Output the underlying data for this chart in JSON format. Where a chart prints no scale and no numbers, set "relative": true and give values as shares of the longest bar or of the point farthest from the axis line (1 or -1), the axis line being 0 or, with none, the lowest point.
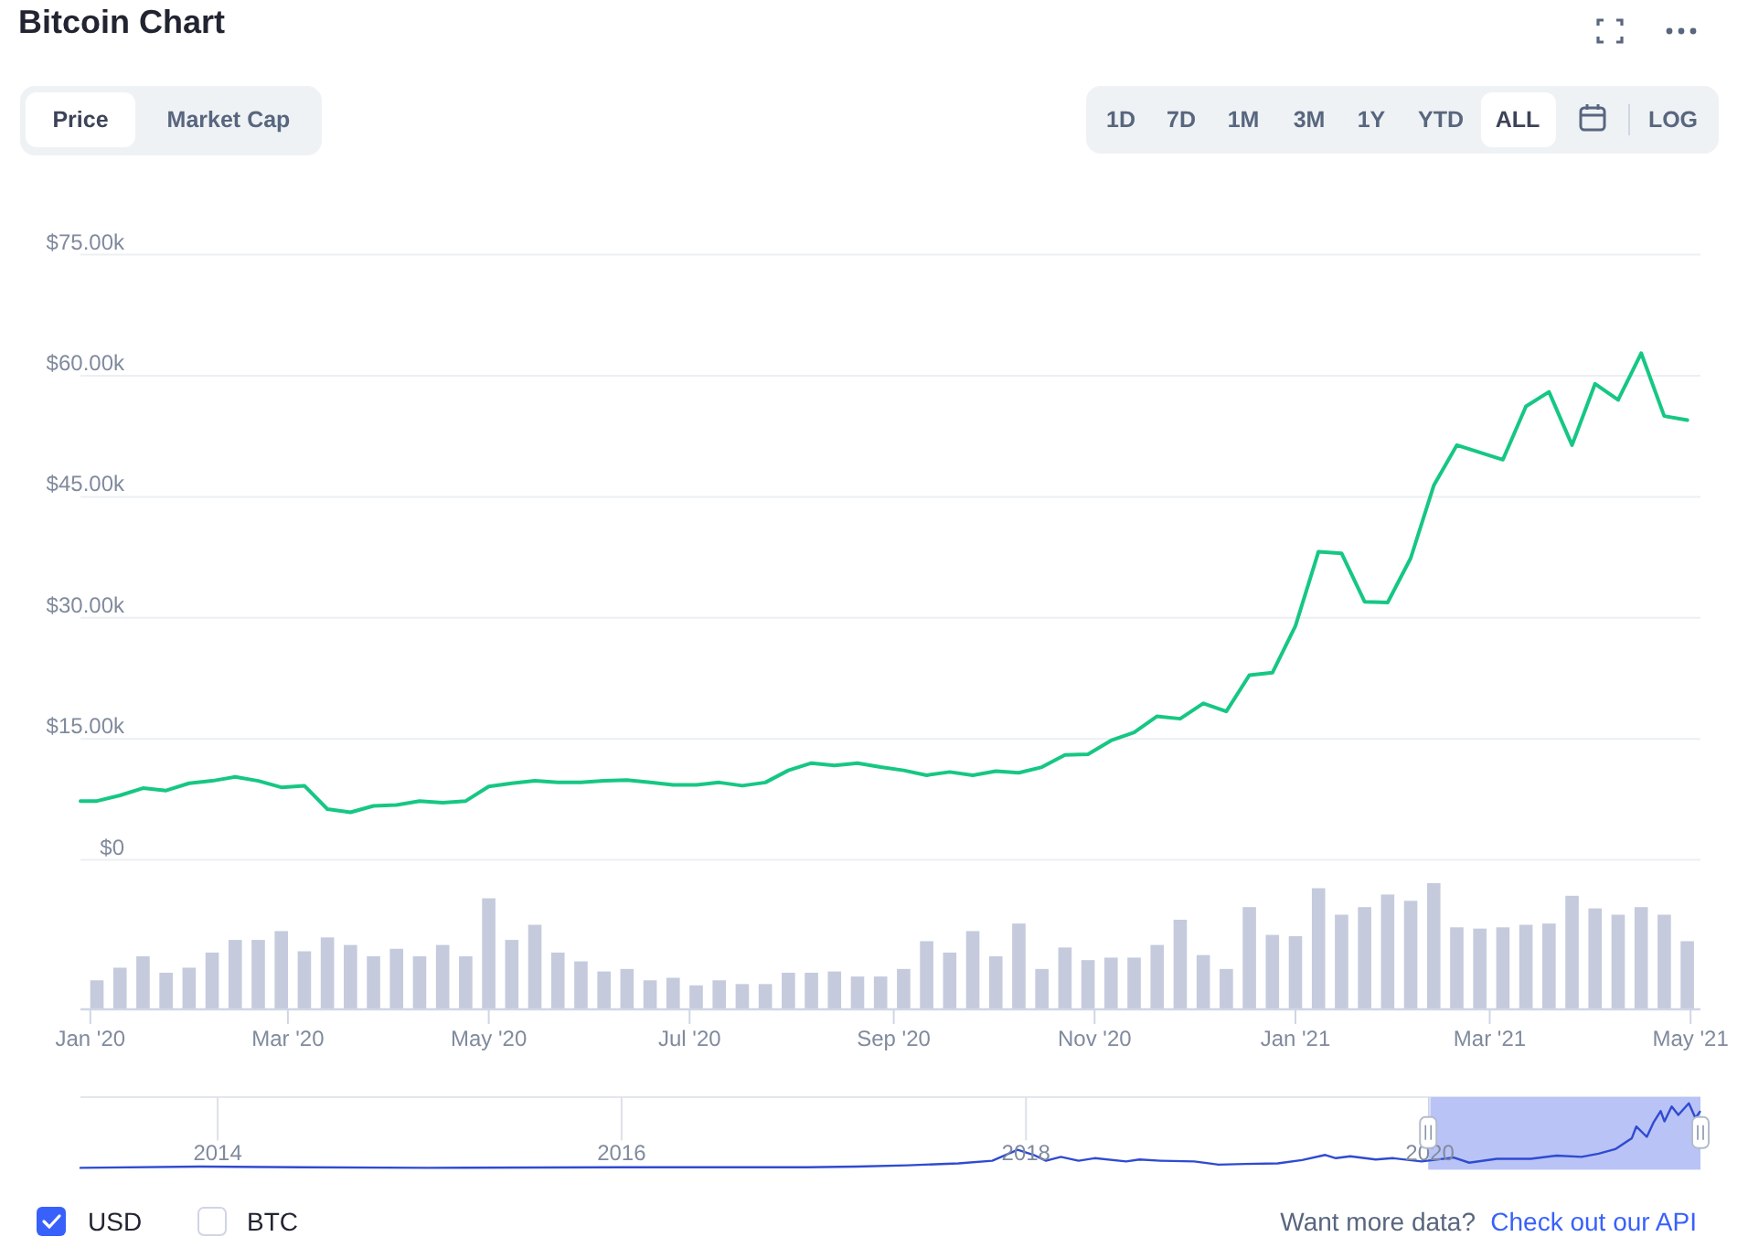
{
  "chart_data": [
    {
      "type": "other",
      "title": "Bitcoin Chart",
      "annotations": [
        "Price",
        "Market Cap",
        "1D",
        "7D",
        "1M",
        "3M",
        "1Y",
        "YTD",
        "ALL",
        "LOG"
      ]
    },
    {
      "type": "line",
      "x": [
        "2019-12-29",
        "2020-01-03",
        "2020-01-10",
        "2020-01-17",
        "2020-01-24",
        "2020-01-31",
        "2020-02-07",
        "2020-02-14",
        "2020-02-21",
        "2020-02-28",
        "2020-03-06",
        "2020-03-13",
        "2020-03-20",
        "2020-03-27",
        "2020-04-03",
        "2020-04-10",
        "2020-04-17",
        "2020-04-24",
        "2020-05-01",
        "2020-05-08",
        "2020-05-15",
        "2020-05-22",
        "2020-05-29",
        "2020-06-05",
        "2020-06-12",
        "2020-06-19",
        "2020-06-26",
        "2020-07-03",
        "2020-07-10",
        "2020-07-17",
        "2020-07-24",
        "2020-07-31",
        "2020-08-07",
        "2020-08-14",
        "2020-08-21",
        "2020-08-28",
        "2020-09-04",
        "2020-09-11",
        "2020-09-18",
        "2020-09-25",
        "2020-10-02",
        "2020-10-09",
        "2020-10-16",
        "2020-10-23",
        "2020-10-30",
        "2020-11-06",
        "2020-11-13",
        "2020-11-20",
        "2020-11-27",
        "2020-12-04",
        "2020-12-11",
        "2020-12-18",
        "2020-12-25",
        "2021-01-01",
        "2021-01-08",
        "2021-01-15",
        "2021-01-22",
        "2021-01-29",
        "2021-02-05",
        "2021-02-12",
        "2021-02-19",
        "2021-02-26",
        "2021-03-05",
        "2021-03-12",
        "2021-03-19",
        "2021-03-26",
        "2021-04-02",
        "2021-04-09",
        "2021-04-16",
        "2021-04-23",
        "2021-04-30"
      ],
      "values": [
        7300,
        7300,
        8000,
        8900,
        8600,
        9500,
        9800,
        10300,
        9800,
        9000,
        9200,
        6300,
        5900,
        6700,
        6800,
        7300,
        7100,
        7300,
        9100,
        9500,
        9800,
        9600,
        9600,
        9800,
        9900,
        9600,
        9300,
        9300,
        9600,
        9200,
        9600,
        11100,
        12000,
        11700,
        12000,
        11500,
        11100,
        10500,
        10900,
        10500,
        11000,
        10800,
        11500,
        13000,
        13100,
        14800,
        15800,
        17800,
        17500,
        19400,
        18400,
        22900,
        23200,
        29000,
        38200,
        38000,
        32000,
        31900,
        37400,
        46400,
        51400,
        50500,
        49600,
        56200,
        58000,
        51400,
        59000,
        57000,
        62800,
        55000,
        54500
      ],
      "color": "#16c784",
      "xlim": [
        "2019-12-29",
        "2021-05-04"
      ],
      "ylim": [
        0,
        75000
      ],
      "yticks": [
        {
          "value": 0,
          "label": "$0"
        },
        {
          "value": 15000,
          "label": "$15.00k"
        },
        {
          "value": 30000,
          "label": "$30.00k"
        },
        {
          "value": 45000,
          "label": "$45.00k"
        },
        {
          "value": 60000,
          "label": "$60.00k"
        },
        {
          "value": 75000,
          "label": "$75.00k"
        }
      ],
      "grid": "y",
      "tick_labels": "y"
    },
    {
      "type": "bar",
      "relative": true,
      "x": [
        "2020-01-03",
        "2020-01-10",
        "2020-01-17",
        "2020-01-24",
        "2020-01-31",
        "2020-02-07",
        "2020-02-14",
        "2020-02-21",
        "2020-02-28",
        "2020-03-06",
        "2020-03-13",
        "2020-03-20",
        "2020-03-27",
        "2020-04-03",
        "2020-04-10",
        "2020-04-17",
        "2020-04-24",
        "2020-05-01",
        "2020-05-08",
        "2020-05-15",
        "2020-05-22",
        "2020-05-29",
        "2020-06-05",
        "2020-06-12",
        "2020-06-19",
        "2020-06-26",
        "2020-07-03",
        "2020-07-10",
        "2020-07-17",
        "2020-07-24",
        "2020-07-31",
        "2020-08-07",
        "2020-08-14",
        "2020-08-21",
        "2020-08-28",
        "2020-09-04",
        "2020-09-11",
        "2020-09-18",
        "2020-09-25",
        "2020-10-02",
        "2020-10-09",
        "2020-10-16",
        "2020-10-23",
        "2020-10-30",
        "2020-11-06",
        "2020-11-13",
        "2020-11-20",
        "2020-11-27",
        "2020-12-04",
        "2020-12-11",
        "2020-12-18",
        "2020-12-25",
        "2021-01-01",
        "2021-01-08",
        "2021-01-15",
        "2021-01-22",
        "2021-01-29",
        "2021-02-05",
        "2021-02-12",
        "2021-02-19",
        "2021-02-26",
        "2021-03-05",
        "2021-03-12",
        "2021-03-19",
        "2021-03-26",
        "2021-04-02",
        "2021-04-09",
        "2021-04-16",
        "2021-04-23",
        "2021-04-30"
      ],
      "values": [
        0.23,
        0.33,
        0.42,
        0.29,
        0.33,
        0.45,
        0.55,
        0.55,
        0.62,
        0.46,
        0.57,
        0.51,
        0.42,
        0.48,
        0.42,
        0.51,
        0.42,
        0.88,
        0.55,
        0.67,
        0.45,
        0.38,
        0.3,
        0.32,
        0.23,
        0.25,
        0.19,
        0.23,
        0.2,
        0.2,
        0.29,
        0.29,
        0.3,
        0.26,
        0.26,
        0.32,
        0.54,
        0.45,
        0.62,
        0.42,
        0.68,
        0.32,
        0.49,
        0.39,
        0.41,
        0.41,
        0.51,
        0.71,
        0.43,
        0.32,
        0.81,
        0.59,
        0.58,
        0.96,
        0.75,
        0.81,
        0.91,
        0.86,
        1,
        0.65,
        0.64,
        0.65,
        0.67,
        0.68,
        0.9,
        0.8,
        0.75,
        0.81,
        0.75,
        0.54
      ],
      "color": "#c5cbdd",
      "xlim": [
        "2019-12-29",
        "2021-05-04"
      ],
      "xticks": [
        {
          "value": "2020-01-01",
          "label": "Jan '20"
        },
        {
          "value": "2020-03-01",
          "label": "Mar '20"
        },
        {
          "value": "2020-05-01",
          "label": "May '20"
        },
        {
          "value": "2020-07-01",
          "label": "Jul '20"
        },
        {
          "value": "2020-09-01",
          "label": "Sep '20"
        },
        {
          "value": "2020-11-01",
          "label": "Nov '20"
        },
        {
          "value": "2021-01-01",
          "label": "Jan '21"
        },
        {
          "value": "2021-03-01",
          "label": "Mar '21"
        },
        {
          "value": "2021-05-01",
          "label": "May '21"
        }
      ]
    },
    {
      "type": "line",
      "relative": true,
      "x": [
        "2013-04-28",
        "2013-11-30",
        "2014-06-01",
        "2015-01-15",
        "2016-01-01",
        "2016-12-01",
        "2017-03-01",
        "2017-06-01",
        "2017-09-01",
        "2017-11-01",
        "2017-12-17",
        "2018-01-15",
        "2018-02-06",
        "2018-03-05",
        "2018-04-06",
        "2018-05-05",
        "2018-07-01",
        "2018-07-25",
        "2018-09-01",
        "2018-11-01",
        "2018-12-15",
        "2019-02-01",
        "2019-04-01",
        "2019-05-15",
        "2019-06-26",
        "2019-07-15",
        "2019-08-10",
        "2019-09-25",
        "2019-10-26",
        "2019-12-17",
        "2020-02-13",
        "2020-03-12",
        "2020-05-01",
        "2020-07-01",
        "2020-08-17",
        "2020-10-01",
        "2020-11-01",
        "2020-12-01",
        "2020-12-31",
        "2021-01-08",
        "2021-01-27",
        "2021-02-08",
        "2021-02-21",
        "2021-02-28",
        "2021-03-13",
        "2021-03-25",
        "2021-04-13",
        "2021-04-25",
        "2021-05-03"
      ],
      "values": [
        0,
        0.02,
        0.01,
        0,
        0.01,
        0.01,
        0.02,
        0.04,
        0.07,
        0.11,
        0.28,
        0.2,
        0.11,
        0.17,
        0.11,
        0.15,
        0.1,
        0.13,
        0.11,
        0.1,
        0.05,
        0.06,
        0.07,
        0.12,
        0.2,
        0.15,
        0.18,
        0.13,
        0.15,
        0.1,
        0.16,
        0.08,
        0.14,
        0.14,
        0.19,
        0.17,
        0.22,
        0.29,
        0.46,
        0.64,
        0.48,
        0.7,
        0.88,
        0.72,
        0.95,
        0.82,
        1,
        0.77,
        0.87
      ],
      "color": "#2f4bd1",
      "xlim": [
        "2013-04-28",
        "2021-05-04"
      ],
      "xticks": [
        {
          "value": "2014-01-01",
          "label": "2014"
        },
        {
          "value": "2016-01-01",
          "label": "2016"
        },
        {
          "value": "2018-01-01",
          "label": "2018"
        },
        {
          "value": "2020-01-01",
          "label": "2020"
        }
      ],
      "grid": "x",
      "bands": [
        {
          "axis": "x",
          "from": "2019-12-29",
          "to": "2021-05-04",
          "color": "#b9c3f6"
        }
      ]
    },
    {
      "type": "other",
      "annotations": [
        "USD",
        "BTC",
        "Want more data?",
        "Check out our API"
      ]
    }
  ]
}
